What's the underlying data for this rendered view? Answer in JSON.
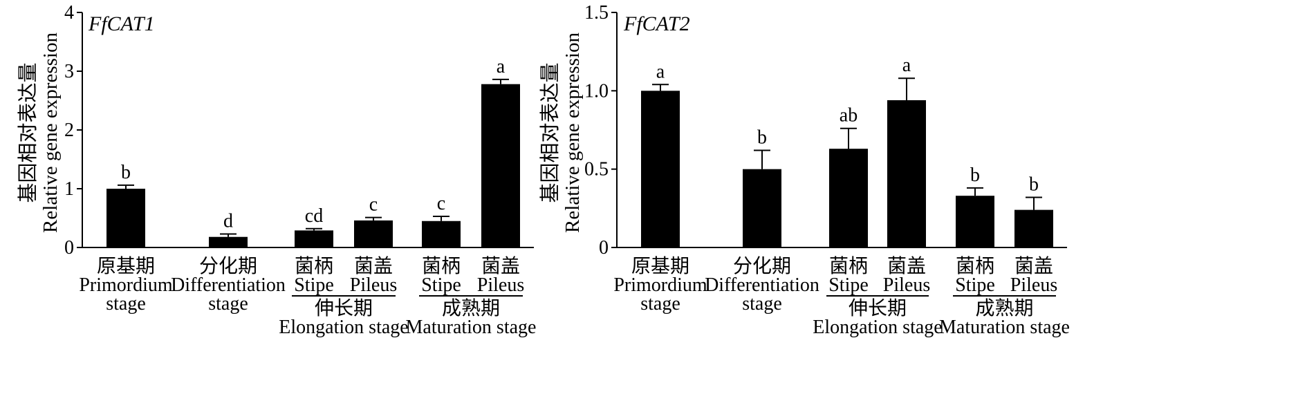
{
  "chart_data": [
    {
      "type": "bar",
      "title": "FfCAT1",
      "ylabel_cn": "基因相对表达量",
      "ylabel_en": "Relative gene expression",
      "ylim": [
        0,
        4
      ],
      "yticks": [
        "0",
        "1",
        "2",
        "3",
        "4"
      ],
      "categories": [
        {
          "cn": "原基期",
          "en": [
            "Primordium",
            "stage"
          ]
        },
        {
          "cn": "分化期",
          "en": [
            "Differentiation",
            "stage"
          ]
        },
        {
          "cn": "菌柄",
          "en": [
            "Stipe"
          ]
        },
        {
          "cn": "菌盖",
          "en": [
            "Pileus"
          ]
        },
        {
          "cn": "菌柄",
          "en": [
            "Stipe"
          ]
        },
        {
          "cn": "菌盖",
          "en": [
            "Pileus"
          ]
        }
      ],
      "values": [
        1.0,
        0.18,
        0.29,
        0.46,
        0.45,
        2.78
      ],
      "errors": [
        0.06,
        0.05,
        0.03,
        0.05,
        0.08,
        0.08
      ],
      "letters": [
        "b",
        "d",
        "cd",
        "c",
        "c",
        "a"
      ],
      "groups": [
        {
          "cn": "伸长期",
          "en": "Elongation stage"
        },
        {
          "cn": "成熟期",
          "en": "Maturation stage"
        }
      ],
      "bar_color": "#000000"
    },
    {
      "type": "bar",
      "title": "FfCAT2",
      "ylabel_cn": "基因相对表达量",
      "ylabel_en": "Relative gene expression",
      "ylim": [
        0,
        1.5
      ],
      "yticks": [
        "0",
        "0.5",
        "1.0",
        "1.5"
      ],
      "categories": [
        {
          "cn": "原基期",
          "en": [
            "Primordium",
            "stage"
          ]
        },
        {
          "cn": "分化期",
          "en": [
            "Differentiation",
            "stage"
          ]
        },
        {
          "cn": "菌柄",
          "en": [
            "Stipe"
          ]
        },
        {
          "cn": "菌盖",
          "en": [
            "Pileus"
          ]
        },
        {
          "cn": "菌柄",
          "en": [
            "Stipe"
          ]
        },
        {
          "cn": "菌盖",
          "en": [
            "Pileus"
          ]
        }
      ],
      "values": [
        1.0,
        0.5,
        0.63,
        0.94,
        0.33,
        0.24
      ],
      "errors": [
        0.04,
        0.12,
        0.13,
        0.14,
        0.05,
        0.08
      ],
      "letters": [
        "a",
        "b",
        "ab",
        "a",
        "b",
        "b"
      ],
      "groups": [
        {
          "cn": "伸长期",
          "en": "Elongation stage"
        },
        {
          "cn": "成熟期",
          "en": "Maturation stage"
        }
      ],
      "bar_color": "#000000"
    }
  ]
}
